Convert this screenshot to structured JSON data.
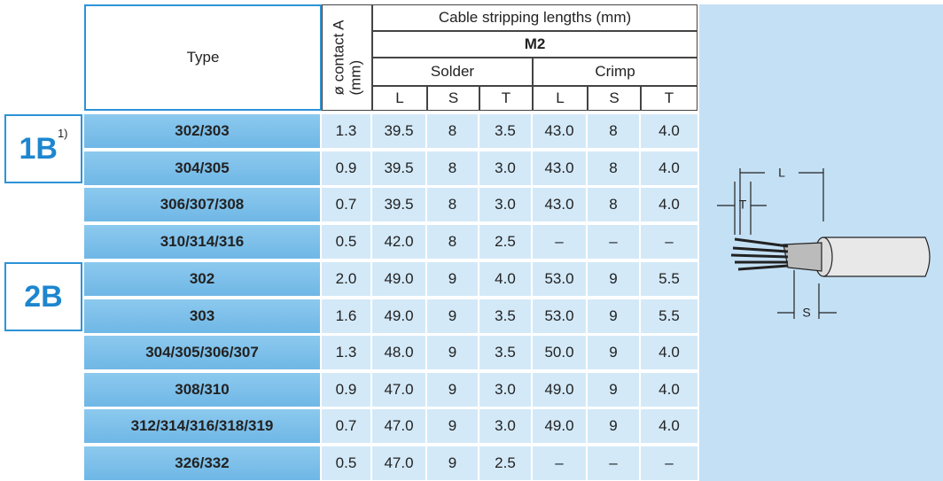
{
  "header": {
    "type": "Type",
    "contact": [
      "ø contact A",
      "(mm)"
    ],
    "title": "Cable stripping lengths (mm)",
    "variant": "M2",
    "solder": "Solder",
    "crimp": "Crimp",
    "sub": [
      "L",
      "S",
      "T",
      "L",
      "S",
      "T"
    ]
  },
  "groups": [
    {
      "label": "1B",
      "note": "1)",
      "rows": [
        [
          "302/303",
          "1.3",
          "39.5",
          "8",
          "3.5",
          "43.0",
          "8",
          "4.0"
        ],
        [
          "304/305",
          "0.9",
          "39.5",
          "8",
          "3.0",
          "43.0",
          "8",
          "4.0"
        ],
        [
          "306/307/308",
          "0.7",
          "39.5",
          "8",
          "3.0",
          "43.0",
          "8",
          "4.0"
        ],
        [
          "310/314/316",
          "0.5",
          "42.0",
          "8",
          "2.5",
          "–",
          "–",
          "–"
        ]
      ]
    },
    {
      "label": "2B",
      "rows": [
        [
          "302",
          "2.0",
          "49.0",
          "9",
          "4.0",
          "53.0",
          "9",
          "5.5"
        ],
        [
          "303",
          "1.6",
          "49.0",
          "9",
          "3.5",
          "53.0",
          "9",
          "5.5"
        ],
        [
          "304/305/306/307",
          "1.3",
          "48.0",
          "9",
          "3.5",
          "50.0",
          "9",
          "4.0"
        ],
        [
          "308/310",
          "0.9",
          "47.0",
          "9",
          "3.0",
          "49.0",
          "9",
          "4.0"
        ],
        [
          "312/314/316/318/319",
          "0.7",
          "47.0",
          "9",
          "3.0",
          "49.0",
          "9",
          "4.0"
        ],
        [
          "326/332",
          "0.5",
          "47.0",
          "9",
          "2.5",
          "–",
          "–",
          "–"
        ]
      ]
    }
  ],
  "diagram": {
    "length": "L",
    "tip": "T",
    "shield": "S"
  }
}
